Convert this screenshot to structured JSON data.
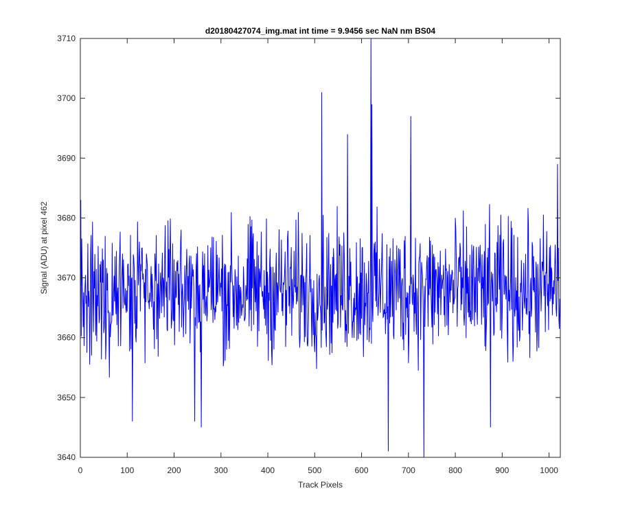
{
  "chart_data": {
    "type": "line",
    "title": "d20180427074_img.mat int time = 9.9456 sec  NaN nm BS04",
    "xlabel": "Track Pixels",
    "ylabel": "Signal (ADU) at pixel 462",
    "xlim": [
      0,
      1024
    ],
    "ylim": [
      3640,
      3710
    ],
    "xticks": [
      0,
      100,
      200,
      300,
      400,
      500,
      600,
      700,
      800,
      900,
      1000
    ],
    "yticks": [
      3640,
      3650,
      3660,
      3670,
      3680,
      3690,
      3700,
      3710
    ],
    "xtick_labels": [
      "0",
      "100",
      "200",
      "300",
      "400",
      "500",
      "600",
      "700",
      "800",
      "900",
      "1000"
    ],
    "ytick_labels": [
      "3640",
      "3650",
      "3660",
      "3670",
      "3680",
      "3690",
      "3700",
      "3710"
    ],
    "grid": false,
    "legend": "none",
    "line_color": "#0000ff",
    "series": [
      {
        "x_start": 1,
        "x_step": 1,
        "mean": 3668,
        "noise_amplitude": 7.5,
        "notable_points": [
          {
            "x": 1,
            "y": 3683
          },
          {
            "x": 111,
            "y": 3646
          },
          {
            "x": 244,
            "y": 3646
          },
          {
            "x": 258,
            "y": 3645
          },
          {
            "x": 515,
            "y": 3701
          },
          {
            "x": 570,
            "y": 3694
          },
          {
            "x": 620,
            "y": 3710
          },
          {
            "x": 622,
            "y": 3699
          },
          {
            "x": 657,
            "y": 3641
          },
          {
            "x": 705,
            "y": 3697
          },
          {
            "x": 733,
            "y": 3640
          },
          {
            "x": 875,
            "y": 3645
          },
          {
            "x": 1018,
            "y": 3689
          }
        ]
      }
    ]
  }
}
